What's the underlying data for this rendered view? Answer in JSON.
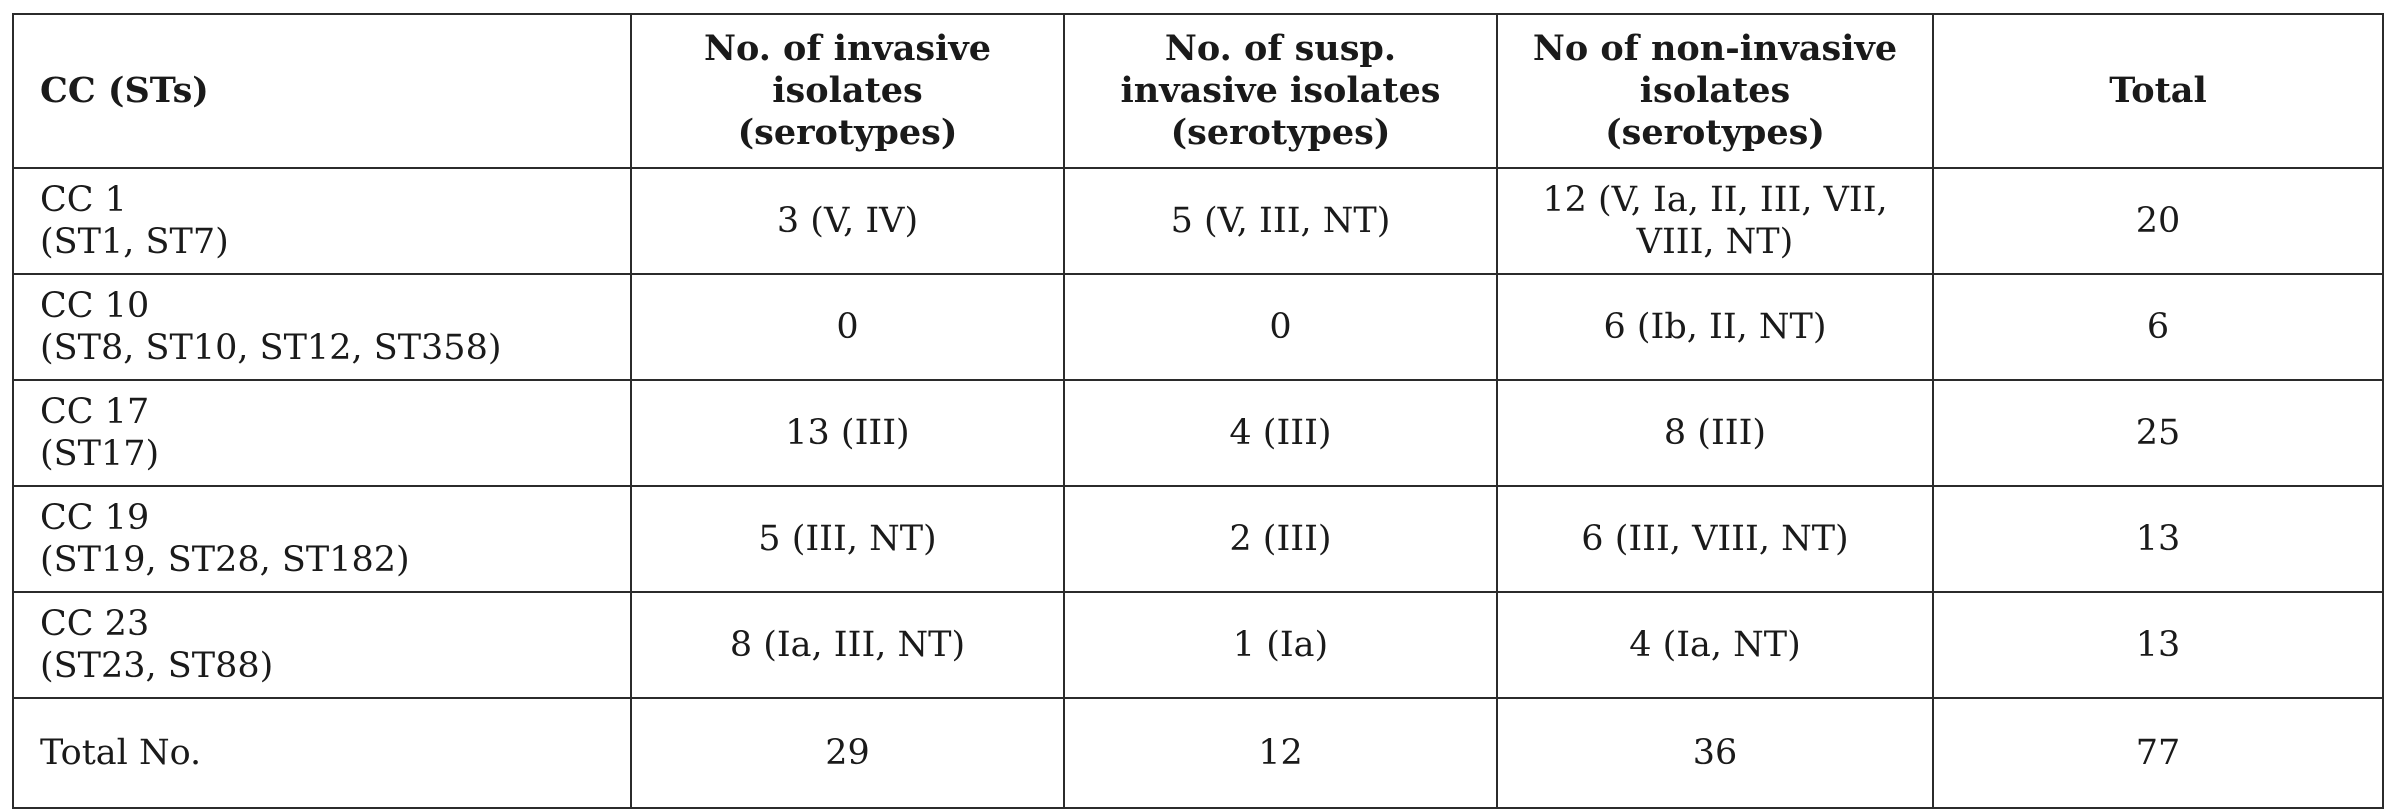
{
  "table": {
    "headers": [
      {
        "lines": [
          "CC (STs)"
        ]
      },
      {
        "lines": [
          "No. of invasive",
          "isolates",
          "(serotypes)"
        ]
      },
      {
        "lines": [
          "No. of susp.",
          "invasive isolates",
          "(serotypes)"
        ]
      },
      {
        "lines": [
          "No of non-invasive",
          "isolates",
          "(serotypes)"
        ]
      },
      {
        "lines": [
          "Total"
        ]
      }
    ],
    "rows": [
      {
        "cc": "CC 1",
        "sts": "(ST1, ST7)",
        "invasive": "3 (V, IV)",
        "susp_invasive": "5 (V, III, NT)",
        "non_invasive": [
          "12 (V, Ia, II, III, VII,",
          "VIII, NT)"
        ],
        "total": "20"
      },
      {
        "cc": "CC 10",
        "sts": "(ST8, ST10, ST12, ST358)",
        "invasive": "0",
        "susp_invasive": "0",
        "non_invasive": [
          "6 (Ib, II, NT)"
        ],
        "total": "6"
      },
      {
        "cc": "CC 17",
        "sts": "(ST17)",
        "invasive": "13 (III)",
        "susp_invasive": "4 (III)",
        "non_invasive": [
          "8 (III)"
        ],
        "total": "25"
      },
      {
        "cc": "CC 19",
        "sts": "(ST19, ST28, ST182)",
        "invasive": "5 (III, NT)",
        "susp_invasive": "2 (III)",
        "non_invasive": [
          "6 (III, VIII, NT)"
        ],
        "total": "13"
      },
      {
        "cc": "CC 23",
        "sts": "(ST23, ST88)",
        "invasive": "8 (Ia, III, NT)",
        "susp_invasive": "1 (Ia)",
        "non_invasive": [
          "4 (Ia, NT)"
        ],
        "total": "13"
      }
    ],
    "total_row": {
      "label": "Total No.",
      "invasive": "29",
      "susp_invasive": "12",
      "non_invasive": "36",
      "total": "77"
    }
  }
}
